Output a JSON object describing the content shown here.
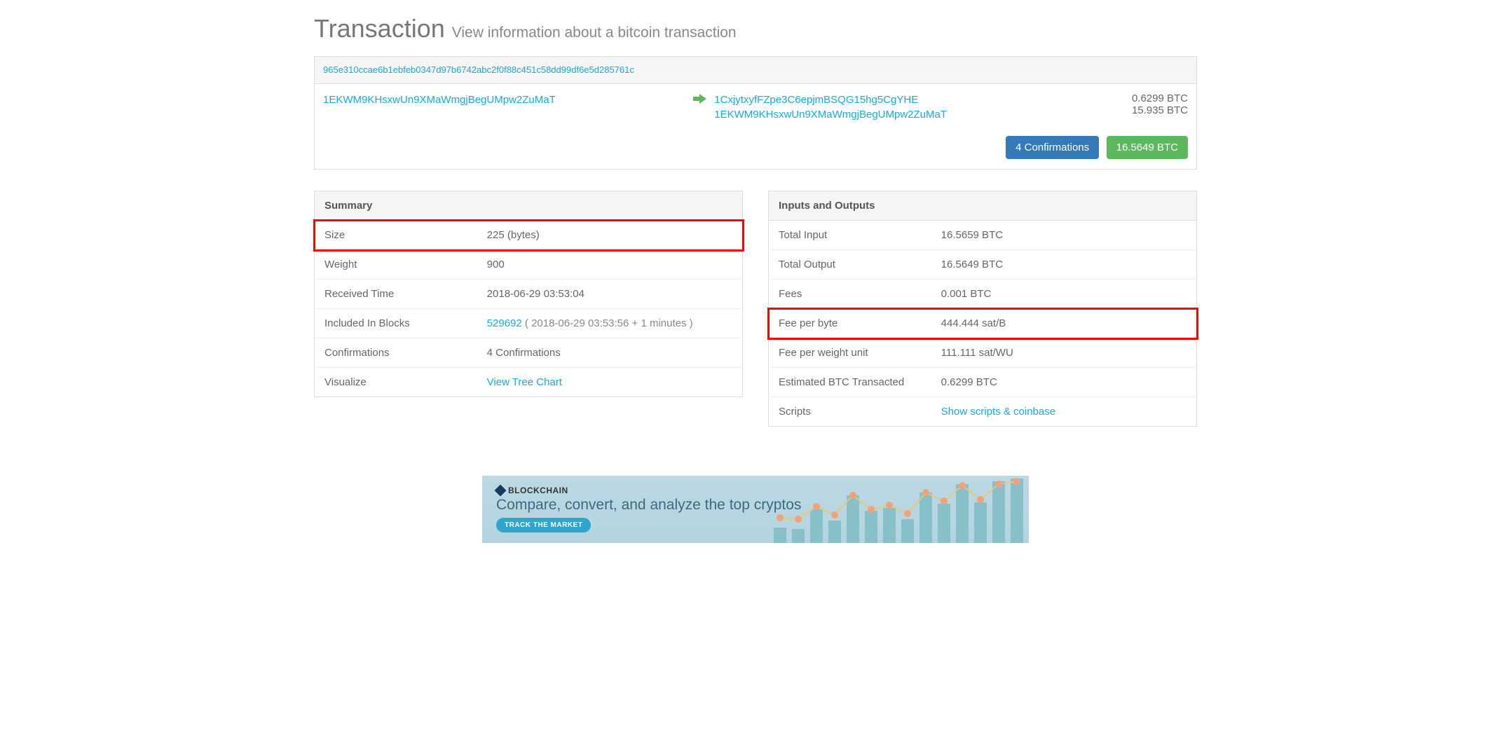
{
  "title": "Transaction",
  "subtitle": "View information about a bitcoin transaction",
  "tx_hash": "965e310ccae6b1ebfeb0347d97b6742abc2f0f88c451c58dd99df6e5d285761c",
  "input_addr": "1EKWM9KHsxwUn9XMaWmgjBegUMpw2ZuMaT",
  "outputs": [
    {
      "addr": "1CxjytxyfFZpe3C6epjmBSQG15hg5CgYHE",
      "value": "0.6299 BTC"
    },
    {
      "addr": "1EKWM9KHsxwUn9XMaWmgjBegUMpw2ZuMaT",
      "value": "15.935 BTC"
    }
  ],
  "badges": {
    "confirmations": "4 Confirmations",
    "total": "16.5649 BTC"
  },
  "summary": {
    "header": "Summary",
    "rows": [
      {
        "label": "Size",
        "value": "225 (bytes)",
        "highlight": true
      },
      {
        "label": "Weight",
        "value": "900"
      },
      {
        "label": "Received Time",
        "value": "2018-06-29 03:53:04"
      },
      {
        "label": "Included In Blocks",
        "link": "529692",
        "suffix": " ( 2018-06-29 03:53:56 + 1 minutes )"
      },
      {
        "label": "Confirmations",
        "value": "4 Confirmations"
      },
      {
        "label": "Visualize",
        "link": "View Tree Chart"
      }
    ]
  },
  "io": {
    "header": "Inputs and Outputs",
    "rows": [
      {
        "label": "Total Input",
        "value": "16.5659 BTC"
      },
      {
        "label": "Total Output",
        "value": "16.5649 BTC"
      },
      {
        "label": "Fees",
        "value": "0.001 BTC"
      },
      {
        "label": "Fee per byte",
        "value": "444.444 sat/B",
        "highlight": true
      },
      {
        "label": "Fee per weight unit",
        "value": "111.111 sat/WU"
      },
      {
        "label": "Estimated BTC Transacted",
        "value": "0.6299 BTC"
      },
      {
        "label": "Scripts",
        "link": "Show scripts & coinbase"
      }
    ]
  },
  "banner": {
    "brand": "BLOCKCHAIN",
    "headline": "Compare, convert, and analyze the top cryptos",
    "cta": "TRACK THE MARKET",
    "bar_color": "#87c0c9",
    "dot_color": "#f2a27a",
    "bars": [
      22,
      20,
      48,
      32,
      68,
      46,
      50,
      34,
      72,
      56,
      84,
      58,
      88,
      92
    ],
    "dots_y": [
      60,
      62,
      44,
      56,
      28,
      48,
      42,
      54,
      24,
      36,
      14,
      34,
      12,
      8
    ]
  },
  "colors": {
    "link": "#10ade4",
    "badge_blue": "#337ab7",
    "badge_green": "#5cb85c",
    "highlight_border": "#ff0000"
  }
}
